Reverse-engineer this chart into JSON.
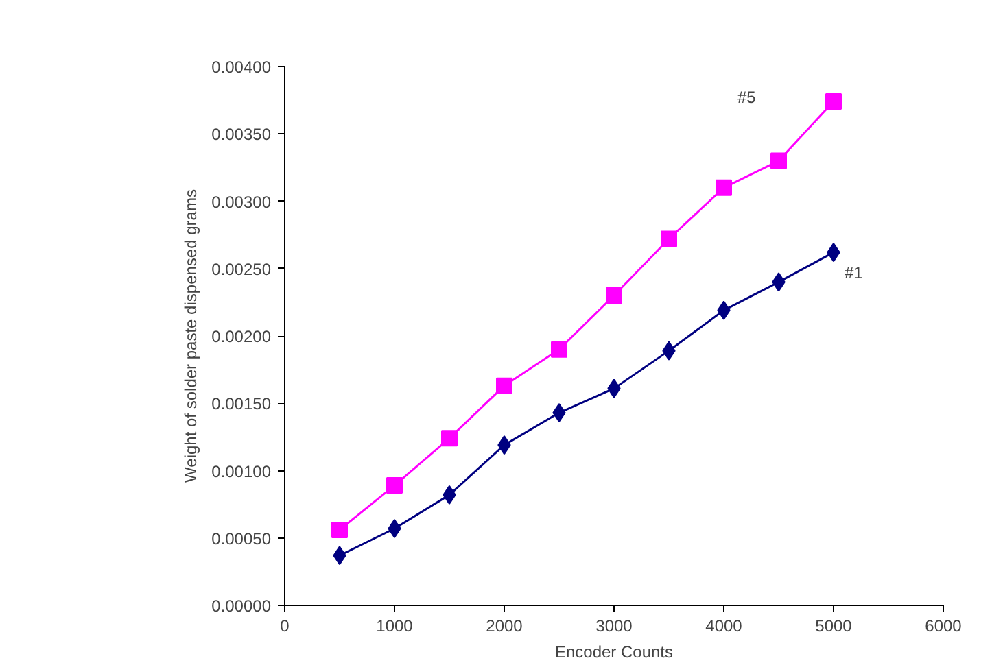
{
  "chart_data": {
    "type": "line",
    "xlabel": "Encoder Counts",
    "ylabel": "Weight of solder paste dispensed grams",
    "x": [
      500,
      1000,
      1500,
      2000,
      2500,
      3000,
      3500,
      4000,
      4500,
      5000
    ],
    "series": [
      {
        "name": "#5",
        "color": "#ff00ff",
        "marker": "square",
        "values": [
          0.00056,
          0.00089,
          0.00124,
          0.00163,
          0.0019,
          0.0023,
          0.00272,
          0.0031,
          0.0033,
          0.00374
        ]
      },
      {
        "name": "#1",
        "color": "#000080",
        "marker": "diamond",
        "values": [
          0.00037,
          0.00057,
          0.00082,
          0.00119,
          0.00143,
          0.00161,
          0.00189,
          0.00219,
          0.0024,
          0.00262
        ]
      }
    ],
    "xlim": [
      0,
      6000
    ],
    "xticks": [
      0,
      1000,
      2000,
      3000,
      4000,
      5000,
      6000
    ],
    "ylim": [
      0,
      0.004
    ],
    "yticks": [
      {
        "value": 0,
        "label": "0.00000"
      },
      {
        "value": 0.0005,
        "label": "0.00050"
      },
      {
        "value": 0.001,
        "label": "0.00100"
      },
      {
        "value": 0.0015,
        "label": "0.00150"
      },
      {
        "value": 0.002,
        "label": "0.00200"
      },
      {
        "value": 0.0025,
        "label": "0.00250"
      },
      {
        "value": 0.003,
        "label": "0.00300"
      },
      {
        "value": 0.0035,
        "label": "0.00350"
      },
      {
        "value": 0.004,
        "label": "0.00400"
      }
    ],
    "grid": false
  }
}
